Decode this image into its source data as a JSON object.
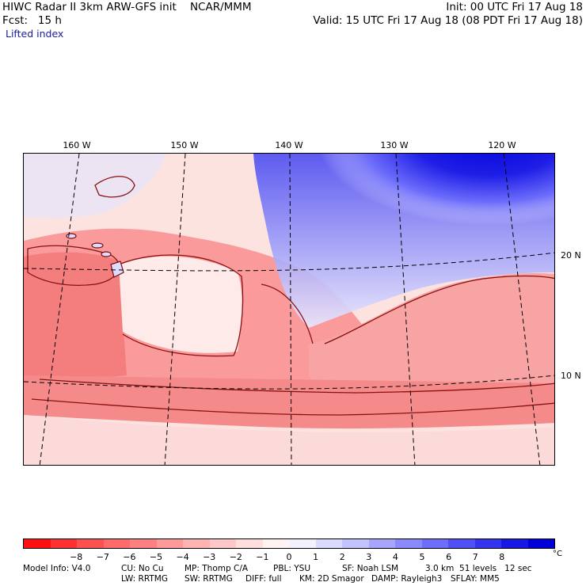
{
  "header": {
    "title": "HIWC Radar II 3km ARW-GFS init    NCAR/MMM",
    "init": "Init: 00 UTC Fri 17 Aug 18",
    "fcst": "Fcst:   15 h",
    "valid": "Valid: 15 UTC Fri 17 Aug 18 (08 PDT Fri 17 Aug 18)",
    "field": "Lifted index"
  },
  "map": {
    "lon_labels": [
      "160 W",
      "150 W",
      "140 W",
      "130 W",
      "120 W"
    ],
    "lat_labels": [
      "20 N",
      "10 N"
    ]
  },
  "colorbar": {
    "colors": [
      "#ff0f0f",
      "#ff3030",
      "#ff5050",
      "#ff6a6a",
      "#ff8080",
      "#ff9a9a",
      "#ffb2b2",
      "#ffc8c8",
      "#ffdede",
      "#fff2f2",
      "#f2f2ff",
      "#dadaff",
      "#c2c2ff",
      "#a6a6ff",
      "#8a8aff",
      "#6e6efc",
      "#5050f5",
      "#3434ee",
      "#1818e4",
      "#0000d8"
    ],
    "ticks": [
      "−8",
      "−7",
      "−6",
      "−5",
      "−4",
      "−3",
      "−2",
      "−1",
      "0",
      "1",
      "2",
      "3",
      "4",
      "5",
      "6",
      "7",
      "8"
    ],
    "unit": "°C"
  },
  "footer": {
    "line1_left": "Model Info: V4.0",
    "line1_cu": "CU: No Cu",
    "line1_mp": "MP: Thomp C/A",
    "line1_pbl": "PBL: YSU",
    "line1_sf": "SF: Noah LSM",
    "line1_res": "3.0 km  51 levels   12 sec",
    "line2_lw": "LW: RRTMG",
    "line2_sw": "SW: RRTMG",
    "line2_diff": "DIFF: full",
    "line2_km": "KM: 2D Smagor",
    "line2_damp": "DAMP: Rayleigh3",
    "line2_sflay": "SFLAY: MM5"
  }
}
